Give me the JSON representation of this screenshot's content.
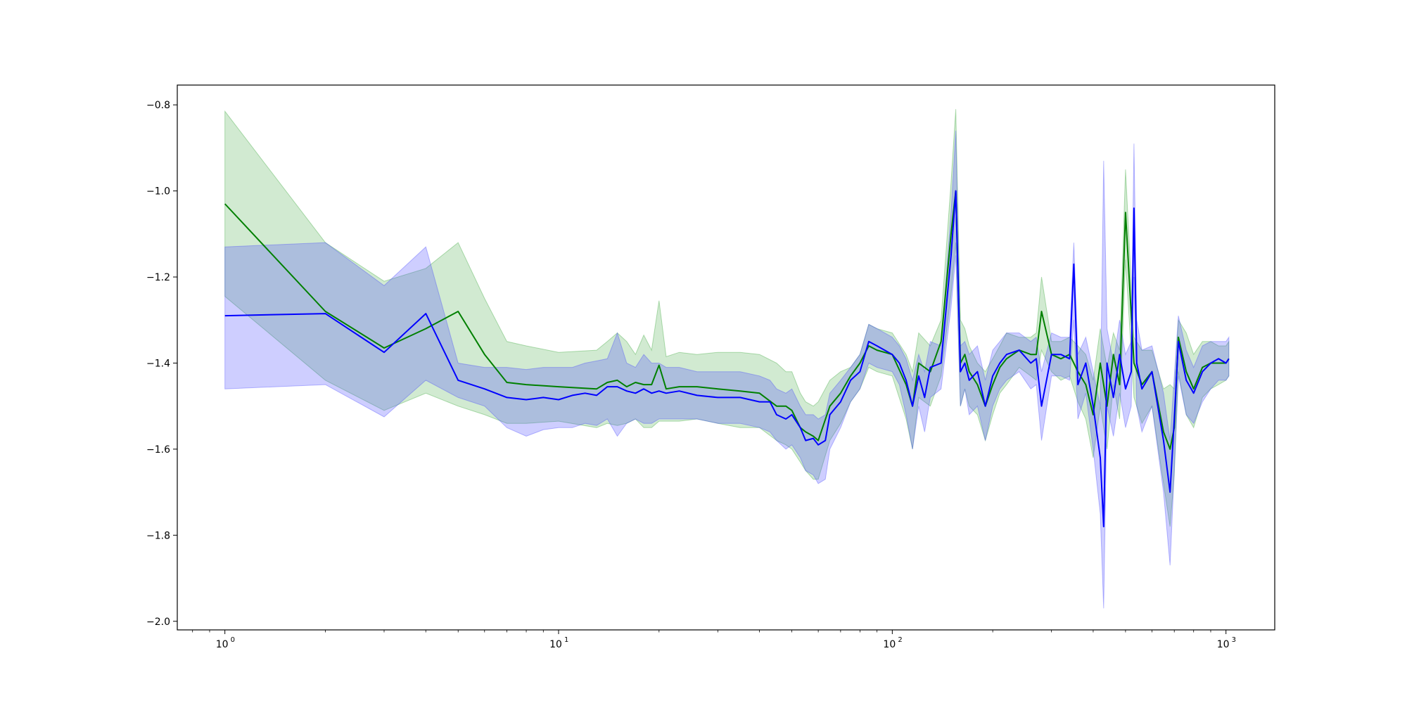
{
  "chart_data": {
    "type": "line",
    "title": "",
    "xlabel": "",
    "ylabel": "",
    "xscale": "log",
    "xlim": [
      0.72,
      1400
    ],
    "ylim": [
      -2.02,
      -0.754
    ],
    "grid": false,
    "legend": "none",
    "x_ticks": [
      {
        "value": 1,
        "base": "10",
        "exp": "0"
      },
      {
        "value": 10,
        "base": "10",
        "exp": "1"
      },
      {
        "value": 100,
        "base": "10",
        "exp": "2"
      },
      {
        "value": 1000,
        "base": "10",
        "exp": "3"
      }
    ],
    "y_ticks": [
      {
        "value": -0.8,
        "label": "−0.8"
      },
      {
        "value": -1.0,
        "label": "−1.0"
      },
      {
        "value": -1.2,
        "label": "−1.2"
      },
      {
        "value": -1.4,
        "label": "−1.4"
      },
      {
        "value": -1.6,
        "label": "−1.6"
      },
      {
        "value": -1.8,
        "label": "−1.8"
      },
      {
        "value": -2.0,
        "label": "−2.0"
      }
    ],
    "series": [
      {
        "color": "#008000",
        "band_color": "#2ca02c",
        "band_opacity": 0.22,
        "x": [
          1,
          2,
          3,
          4,
          5,
          6,
          7,
          8,
          10,
          13,
          14,
          15,
          16,
          17,
          18,
          19,
          20,
          21,
          23,
          26,
          30,
          35,
          40,
          45,
          48,
          50,
          53,
          55,
          58,
          60,
          65,
          70,
          75,
          80,
          85,
          90,
          100,
          110,
          115,
          120,
          130,
          140,
          150,
          155,
          160,
          165,
          170,
          180,
          190,
          200,
          210,
          220,
          240,
          260,
          270,
          280,
          300,
          320,
          340,
          360,
          380,
          400,
          420,
          440,
          460,
          480,
          500,
          530,
          560,
          600,
          650,
          680,
          700,
          720,
          760,
          800,
          850,
          900,
          950,
          1000,
          1020
        ],
        "y": [
          -1.03,
          -1.28,
          -1.365,
          -1.32,
          -1.28,
          -1.38,
          -1.445,
          -1.45,
          -1.455,
          -1.46,
          -1.445,
          -1.44,
          -1.455,
          -1.445,
          -1.45,
          -1.45,
          -1.405,
          -1.46,
          -1.455,
          -1.455,
          -1.46,
          -1.465,
          -1.47,
          -1.5,
          -1.5,
          -1.51,
          -1.55,
          -1.56,
          -1.57,
          -1.58,
          -1.5,
          -1.47,
          -1.43,
          -1.4,
          -1.36,
          -1.37,
          -1.38,
          -1.45,
          -1.5,
          -1.4,
          -1.42,
          -1.35,
          -1.1,
          -1.0,
          -1.4,
          -1.38,
          -1.42,
          -1.45,
          -1.5,
          -1.45,
          -1.41,
          -1.39,
          -1.37,
          -1.38,
          -1.38,
          -1.28,
          -1.38,
          -1.39,
          -1.38,
          -1.42,
          -1.45,
          -1.52,
          -1.4,
          -1.5,
          -1.38,
          -1.45,
          -1.05,
          -1.4,
          -1.45,
          -1.42,
          -1.56,
          -1.6,
          -1.55,
          -1.34,
          -1.42,
          -1.46,
          -1.41,
          -1.4,
          -1.4,
          -1.4,
          -1.39
        ],
        "upper": [
          -0.815,
          -1.12,
          -1.21,
          -1.18,
          -1.12,
          -1.25,
          -1.35,
          -1.36,
          -1.375,
          -1.37,
          -1.35,
          -1.33,
          -1.35,
          -1.38,
          -1.335,
          -1.37,
          -1.255,
          -1.385,
          -1.375,
          -1.38,
          -1.375,
          -1.375,
          -1.38,
          -1.4,
          -1.42,
          -1.42,
          -1.47,
          -1.49,
          -1.5,
          -1.49,
          -1.44,
          -1.42,
          -1.41,
          -1.38,
          -1.31,
          -1.32,
          -1.33,
          -1.38,
          -1.42,
          -1.33,
          -1.36,
          -1.3,
          -0.98,
          -0.81,
          -1.3,
          -1.32,
          -1.36,
          -1.4,
          -1.42,
          -1.39,
          -1.36,
          -1.33,
          -1.34,
          -1.34,
          -1.33,
          -1.2,
          -1.35,
          -1.35,
          -1.34,
          -1.36,
          -1.38,
          -1.44,
          -1.32,
          -1.41,
          -1.33,
          -1.37,
          -0.95,
          -1.34,
          -1.37,
          -1.37,
          -1.46,
          -1.45,
          -1.46,
          -1.3,
          -1.33,
          -1.38,
          -1.35,
          -1.35,
          -1.36,
          -1.36,
          -1.35
        ],
        "lower": [
          -1.245,
          -1.44,
          -1.51,
          -1.47,
          -1.5,
          -1.52,
          -1.54,
          -1.54,
          -1.535,
          -1.55,
          -1.54,
          -1.545,
          -1.54,
          -1.53,
          -1.55,
          -1.55,
          -1.535,
          -1.535,
          -1.535,
          -1.53,
          -1.54,
          -1.55,
          -1.55,
          -1.58,
          -1.59,
          -1.6,
          -1.63,
          -1.65,
          -1.67,
          -1.67,
          -1.58,
          -1.54,
          -1.49,
          -1.46,
          -1.41,
          -1.42,
          -1.43,
          -1.53,
          -1.6,
          -1.48,
          -1.5,
          -1.43,
          -1.24,
          -1.12,
          -1.5,
          -1.46,
          -1.5,
          -1.52,
          -1.58,
          -1.52,
          -1.47,
          -1.45,
          -1.41,
          -1.43,
          -1.44,
          -1.37,
          -1.42,
          -1.44,
          -1.43,
          -1.49,
          -1.53,
          -1.62,
          -1.5,
          -1.6,
          -1.45,
          -1.53,
          -1.16,
          -1.48,
          -1.54,
          -1.5,
          -1.68,
          -1.78,
          -1.66,
          -1.42,
          -1.52,
          -1.55,
          -1.48,
          -1.46,
          -1.45,
          -1.44,
          -1.43
        ]
      },
      {
        "color": "#0000ff",
        "band_color": "#4040ff",
        "band_opacity": 0.26,
        "x": [
          1,
          2,
          3,
          4,
          5,
          6,
          7,
          8,
          9,
          10,
          11,
          12,
          13,
          14,
          15,
          16,
          17,
          18,
          19,
          20,
          21,
          23,
          26,
          30,
          35,
          40,
          43,
          45,
          48,
          50,
          53,
          55,
          58,
          60,
          63,
          65,
          70,
          75,
          80,
          85,
          90,
          100,
          105,
          110,
          115,
          120,
          125,
          130,
          140,
          150,
          155,
          160,
          165,
          170,
          180,
          190,
          200,
          210,
          220,
          240,
          260,
          270,
          280,
          300,
          320,
          340,
          350,
          360,
          380,
          400,
          420,
          430,
          440,
          460,
          480,
          500,
          520,
          530,
          540,
          560,
          600,
          650,
          680,
          700,
          720,
          760,
          800,
          850,
          900,
          950,
          1000,
          1020
        ],
        "y": [
          -1.29,
          -1.285,
          -1.375,
          -1.285,
          -1.44,
          -1.46,
          -1.48,
          -1.485,
          -1.48,
          -1.485,
          -1.475,
          -1.47,
          -1.475,
          -1.455,
          -1.455,
          -1.465,
          -1.47,
          -1.46,
          -1.47,
          -1.465,
          -1.47,
          -1.465,
          -1.475,
          -1.48,
          -1.48,
          -1.49,
          -1.49,
          -1.52,
          -1.53,
          -1.52,
          -1.55,
          -1.58,
          -1.575,
          -1.59,
          -1.58,
          -1.52,
          -1.49,
          -1.44,
          -1.42,
          -1.35,
          -1.36,
          -1.38,
          -1.4,
          -1.44,
          -1.5,
          -1.43,
          -1.48,
          -1.41,
          -1.4,
          -1.15,
          -1.0,
          -1.42,
          -1.4,
          -1.44,
          -1.42,
          -1.5,
          -1.43,
          -1.4,
          -1.38,
          -1.37,
          -1.4,
          -1.39,
          -1.5,
          -1.38,
          -1.38,
          -1.39,
          -1.17,
          -1.45,
          -1.4,
          -1.5,
          -1.62,
          -1.78,
          -1.4,
          -1.48,
          -1.38,
          -1.46,
          -1.42,
          -1.04,
          -1.4,
          -1.46,
          -1.42,
          -1.58,
          -1.7,
          -1.53,
          -1.35,
          -1.44,
          -1.47,
          -1.42,
          -1.4,
          -1.39,
          -1.4,
          -1.39
        ],
        "upper": [
          -1.13,
          -1.12,
          -1.22,
          -1.13,
          -1.4,
          -1.41,
          -1.41,
          -1.415,
          -1.41,
          -1.41,
          -1.41,
          -1.4,
          -1.395,
          -1.39,
          -1.33,
          -1.4,
          -1.41,
          -1.38,
          -1.4,
          -1.4,
          -1.41,
          -1.41,
          -1.42,
          -1.42,
          -1.42,
          -1.43,
          -1.44,
          -1.46,
          -1.47,
          -1.46,
          -1.5,
          -1.52,
          -1.52,
          -1.53,
          -1.52,
          -1.47,
          -1.44,
          -1.41,
          -1.38,
          -1.31,
          -1.32,
          -1.34,
          -1.36,
          -1.39,
          -1.44,
          -1.38,
          -1.42,
          -1.35,
          -1.36,
          -1.05,
          -0.86,
          -1.36,
          -1.35,
          -1.38,
          -1.36,
          -1.44,
          -1.37,
          -1.35,
          -1.33,
          -1.33,
          -1.35,
          -1.34,
          -1.42,
          -1.33,
          -1.34,
          -1.34,
          -1.12,
          -1.38,
          -1.34,
          -1.42,
          -1.5,
          -0.93,
          -1.32,
          -1.4,
          -1.3,
          -1.38,
          -1.35,
          -0.89,
          -1.3,
          -1.37,
          -1.36,
          -1.47,
          -1.58,
          -1.43,
          -1.29,
          -1.37,
          -1.41,
          -1.36,
          -1.35,
          -1.35,
          -1.35,
          -1.34
        ],
        "lower": [
          -1.46,
          -1.45,
          -1.525,
          -1.44,
          -1.48,
          -1.5,
          -1.55,
          -1.57,
          -1.555,
          -1.55,
          -1.55,
          -1.54,
          -1.545,
          -1.53,
          -1.57,
          -1.54,
          -1.53,
          -1.54,
          -1.54,
          -1.53,
          -1.53,
          -1.53,
          -1.53,
          -1.54,
          -1.54,
          -1.55,
          -1.56,
          -1.58,
          -1.6,
          -1.59,
          -1.62,
          -1.65,
          -1.66,
          -1.68,
          -1.67,
          -1.6,
          -1.55,
          -1.49,
          -1.46,
          -1.4,
          -1.41,
          -1.42,
          -1.45,
          -1.52,
          -1.6,
          -1.5,
          -1.56,
          -1.48,
          -1.46,
          -1.27,
          -1.15,
          -1.5,
          -1.46,
          -1.52,
          -1.5,
          -1.58,
          -1.5,
          -1.46,
          -1.44,
          -1.42,
          -1.46,
          -1.45,
          -1.58,
          -1.43,
          -1.43,
          -1.44,
          -1.3,
          -1.53,
          -1.47,
          -1.6,
          -1.75,
          -1.97,
          -1.5,
          -1.57,
          -1.47,
          -1.55,
          -1.5,
          -1.2,
          -1.5,
          -1.56,
          -1.5,
          -1.7,
          -1.87,
          -1.65,
          -1.43,
          -1.52,
          -1.54,
          -1.49,
          -1.46,
          -1.44,
          -1.44,
          -1.43
        ]
      }
    ]
  }
}
